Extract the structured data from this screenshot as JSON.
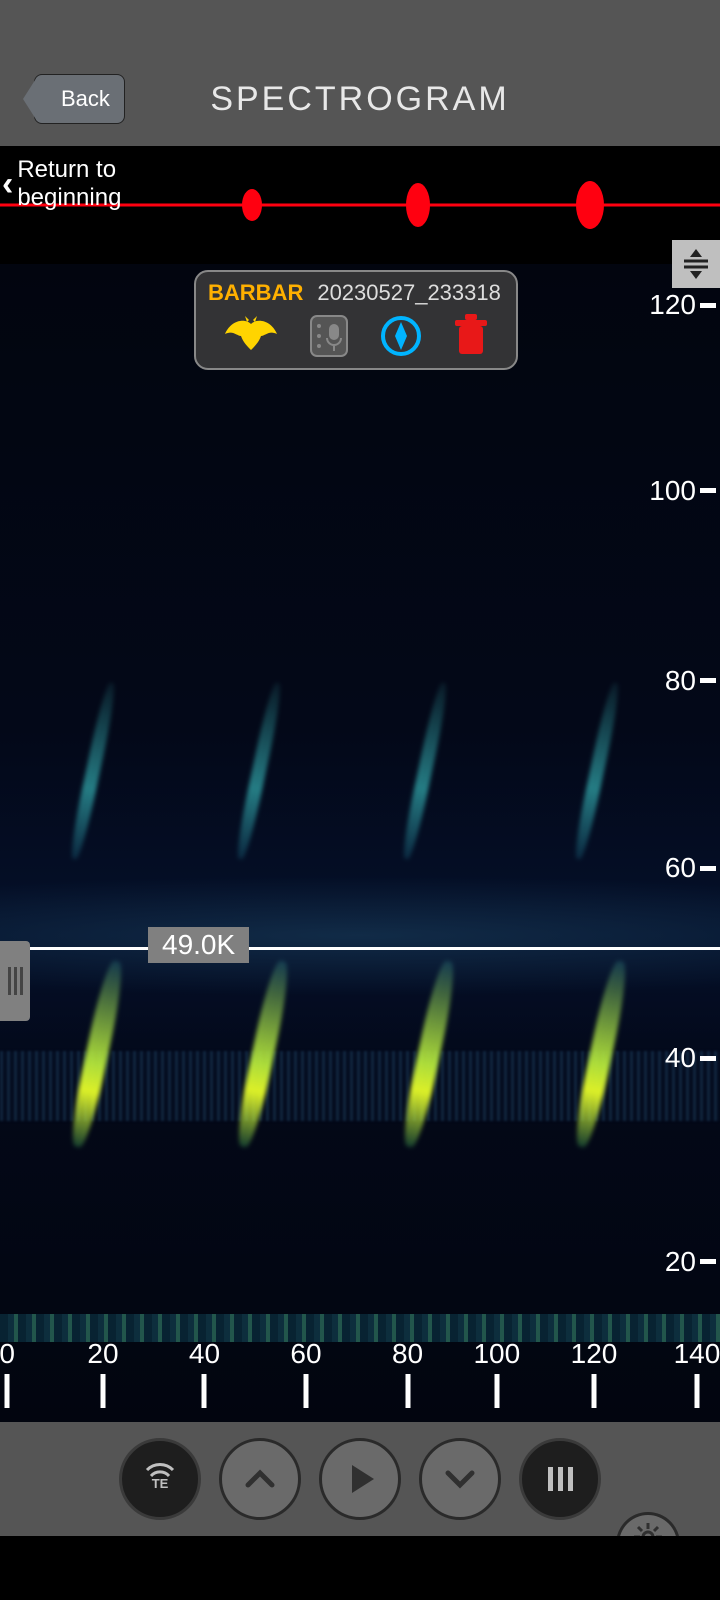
{
  "header": {
    "back_label": "Back",
    "title": "SPECTROGRAM"
  },
  "waveform": {
    "return_label": "Return to\nbeginning",
    "line_color": "#ff0010",
    "pulse_positions_pct": [
      35,
      58,
      82
    ]
  },
  "info_panel": {
    "species": "BARBAR",
    "filename": "20230527_233318",
    "bat_icon_color": "#ffd400",
    "compass_icon_color": "#00b4ff",
    "trash_icon_color": "#e81818"
  },
  "spectrogram": {
    "y_axis": {
      "unit": "kHz",
      "ticks": [
        {
          "label": "120",
          "pos_pct": 2.2
        },
        {
          "label": "100",
          "pos_pct": 18.2
        },
        {
          "label": "80",
          "pos_pct": 34.6
        },
        {
          "label": "60",
          "pos_pct": 50.8
        },
        {
          "label": "40",
          "pos_pct": 67.2
        },
        {
          "label": "20",
          "pos_pct": 84.8
        }
      ]
    },
    "x_axis": {
      "unit": "ms",
      "ticks": [
        {
          "label": "0",
          "pos_pct": 1.0
        },
        {
          "label": "20",
          "pos_pct": 14.3
        },
        {
          "label": "40",
          "pos_pct": 28.4
        },
        {
          "label": "60",
          "pos_pct": 42.5
        },
        {
          "label": "80",
          "pos_pct": 56.6
        },
        {
          "label": "100",
          "pos_pct": 69.0
        },
        {
          "label": "120",
          "pos_pct": 82.5
        },
        {
          "label": "140",
          "pos_pct": 96.8
        }
      ]
    },
    "frequency_marker": {
      "label": "49.0K",
      "pos_pct": 59.0
    },
    "calls": {
      "upper_row_top_pct": 36,
      "lower_row_top_pct": 60,
      "x_positions_pct": [
        12,
        35,
        58,
        82
      ]
    },
    "noise_band_top_pct": 68
  },
  "controls": {
    "te_label": "TE"
  },
  "colors": {
    "header_bg": "#555555",
    "panel_bg": "#6a6f75",
    "spectro_bg": "#020510"
  }
}
